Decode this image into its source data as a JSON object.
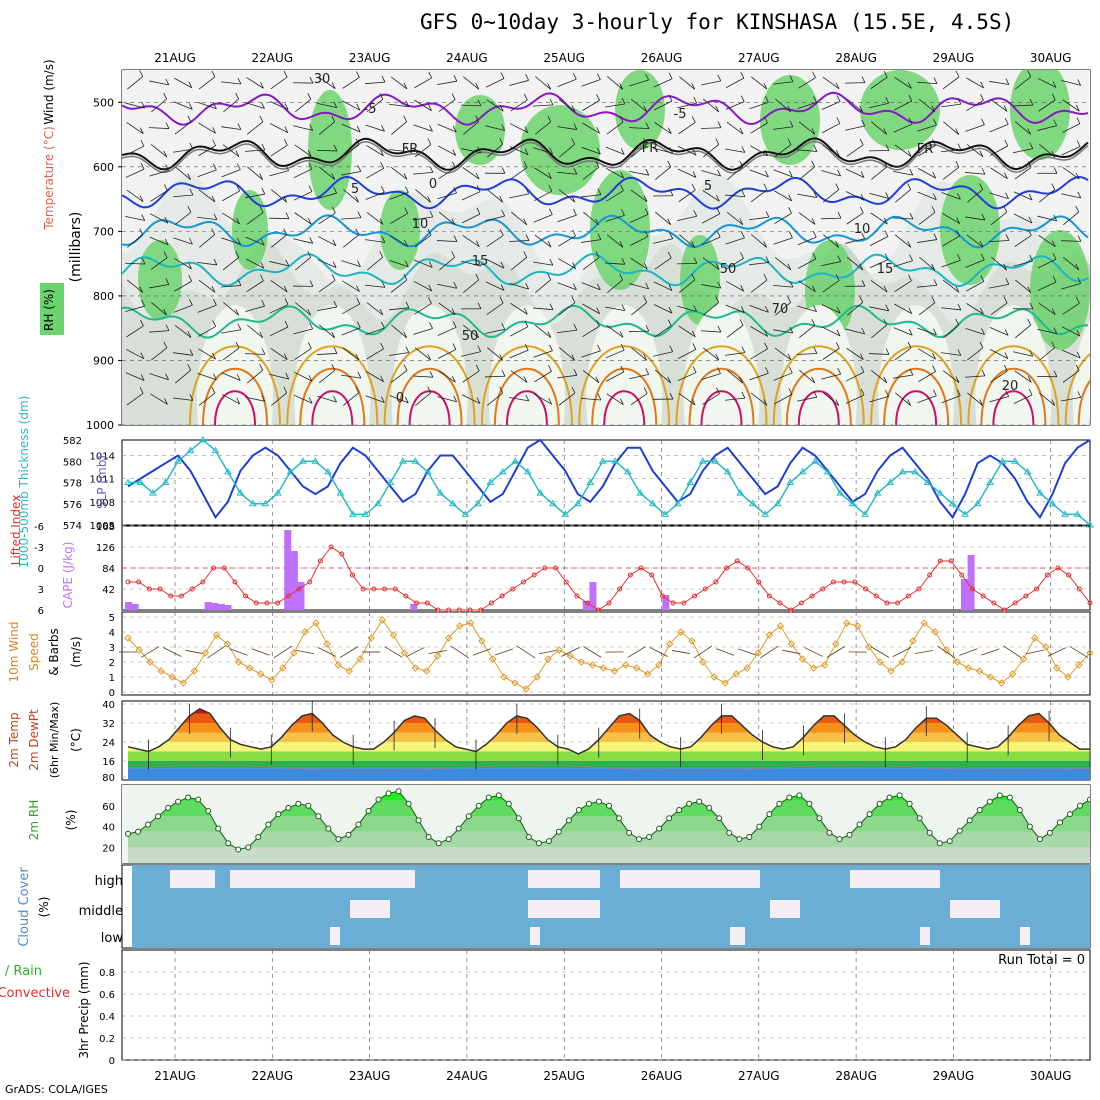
{
  "title": "GFS 0~10day 3-hourly for KINSHASA (15.5E, 4.5S)",
  "credit": "GrADS: COLA/IGES",
  "colors": {
    "rh_green": "#6cd46c",
    "temp_line": "#8e2be0",
    "slp": "#1f3fcf",
    "thickness": "#29b9c4",
    "cape": "#c070ff",
    "lifted": "#e03030",
    "wind": "#e09a2a",
    "rh2m": "#22dd22",
    "cloud": "#6aaed6"
  },
  "chart_data": [
    {
      "type": "heatmap",
      "id": "upper",
      "days": [
        "21AUG",
        "22AUG",
        "23AUG",
        "24AUG",
        "25AUG",
        "26AUG",
        "27AUG",
        "28AUG",
        "29AUG",
        "30AUG"
      ],
      "ylabel": "(millibars)",
      "left_labels": {
        "rh": "RH (%)",
        "temp": "Temperature (°C)",
        "wind": "Wind (m/s)"
      },
      "ylim": [
        1000,
        450
      ],
      "yticks": [
        500,
        600,
        700,
        800,
        900,
        1000
      ],
      "contour_labels": [
        "-5",
        "-5",
        "FR",
        "FR",
        "FR",
        "5",
        "0",
        "5",
        "10",
        "10",
        "15",
        "15",
        "20",
        "0",
        "30",
        "50",
        "50",
        "70"
      ],
      "isotherms": [
        {
          "name": "-5",
          "base_hpa": 510
        },
        {
          "name": "0",
          "base_hpa": 580
        },
        {
          "name": "5",
          "base_hpa": 640
        },
        {
          "name": "10",
          "base_hpa": 700
        },
        {
          "name": "15",
          "base_hpa": 760
        },
        {
          "name": "20",
          "base_hpa": 840
        }
      ]
    },
    {
      "type": "line",
      "id": "slp",
      "ylabel_left": "1000-500mb Thickness (dm)",
      "ylabel_right": "SLP (mb)",
      "ylim_left": [
        574,
        582
      ],
      "yticks_left": [
        574,
        576,
        578,
        580,
        582
      ],
      "ylim_right": [
        1005,
        1016
      ],
      "yticks_right": [
        1005,
        1008,
        1011,
        1014
      ],
      "series": [
        {
          "name": "SLP (mb)",
          "values": [
            1010,
            1011,
            1012,
            1013,
            1014,
            1012,
            1009,
            1006,
            1008,
            1012,
            1014,
            1015,
            1014,
            1012,
            1010,
            1009,
            1010,
            1013,
            1015,
            1014,
            1012,
            1010,
            1008,
            1009,
            1012,
            1014,
            1014,
            1012,
            1010,
            1008,
            1009,
            1012,
            1015,
            1016,
            1014,
            1012,
            1009,
            1008,
            1010,
            1013,
            1015,
            1015,
            1012,
            1010,
            1008,
            1009,
            1012,
            1014,
            1015,
            1013,
            1011,
            1009,
            1010,
            1013,
            1015,
            1014,
            1012,
            1010,
            1008,
            1009,
            1012,
            1014,
            1015,
            1013,
            1011,
            1008,
            1006,
            1009,
            1013,
            1014,
            1013,
            1011,
            1008,
            1006,
            1009,
            1013,
            1015,
            1016
          ]
        },
        {
          "name": "Thickness (dm)",
          "values": [
            578,
            578,
            577,
            578,
            580,
            581,
            582,
            581,
            579,
            577,
            576,
            576,
            577,
            579,
            580,
            580,
            579,
            577,
            575,
            575,
            576,
            578,
            580,
            580,
            579,
            577,
            576,
            575,
            576,
            578,
            579,
            580,
            579,
            577,
            576,
            575,
            576,
            578,
            580,
            580,
            579,
            577,
            576,
            575,
            576,
            578,
            580,
            580,
            579,
            577,
            576,
            575,
            576,
            578,
            579,
            580,
            579,
            577,
            576,
            575,
            577,
            578,
            579,
            579,
            578,
            577,
            576,
            575,
            576,
            578,
            580,
            580,
            579,
            577,
            576,
            575,
            575,
            574
          ]
        }
      ]
    },
    {
      "type": "bar",
      "id": "cape",
      "ylabel_left": "Lifted Index",
      "ylabel_right": "CAPE (J/kg)",
      "ylim_left": [
        6,
        -6
      ],
      "yticks_left": [
        -6,
        -3,
        0,
        3,
        6
      ],
      "ylim_right": [
        0,
        168
      ],
      "yticks_right": [
        42,
        84,
        126,
        168
      ],
      "cape_values": [
        16,
        12,
        0,
        0,
        0,
        0,
        0,
        0,
        0,
        0,
        0,
        0,
        16,
        14,
        12,
        10,
        0,
        0,
        0,
        0,
        0,
        0,
        0,
        0,
        160,
        118,
        56,
        0,
        0,
        0,
        0,
        0,
        0,
        0,
        0,
        0,
        0,
        0,
        0,
        0,
        0,
        0,
        0,
        12,
        0,
        0,
        0,
        0,
        0,
        0,
        0,
        0,
        0,
        0,
        0,
        0,
        0,
        0,
        0,
        0,
        0,
        0,
        0,
        0,
        0,
        0,
        0,
        0,
        0,
        18,
        56,
        0,
        0,
        0,
        0,
        0,
        0,
        0,
        0,
        0,
        0,
        30,
        0,
        0,
        0,
        0,
        0,
        0,
        0,
        0,
        0,
        0,
        0,
        0,
        0,
        0,
        0,
        0,
        0,
        0,
        0,
        0,
        0,
        0,
        0,
        0,
        0,
        0,
        0,
        0,
        0,
        0,
        0,
        0,
        0,
        0,
        0,
        0,
        0,
        0,
        0,
        0,
        0,
        0,
        0,
        0,
        62,
        110,
        0,
        0,
        0,
        0,
        0,
        0,
        0,
        0,
        0,
        0,
        0,
        0,
        0,
        0,
        0,
        0,
        0,
        0
      ],
      "lifted_index": [
        2,
        2,
        3,
        3,
        4,
        4,
        3,
        2,
        0,
        0,
        2,
        4,
        5,
        5,
        5,
        4,
        3,
        2,
        -1,
        -3,
        -2,
        1,
        3,
        3,
        3,
        3,
        4,
        5,
        5,
        6,
        6,
        6,
        6,
        6,
        5,
        4,
        3,
        2,
        1,
        0,
        0,
        2,
        4,
        5,
        6,
        5,
        3,
        1,
        0,
        1,
        4,
        5,
        5,
        4,
        3,
        2,
        0,
        -1,
        0,
        2,
        4,
        5,
        6,
        5,
        4,
        3,
        2,
        2,
        2,
        3,
        4,
        5,
        5,
        4,
        3,
        1,
        -1,
        -1,
        1,
        3,
        4,
        5,
        6,
        5,
        4,
        3,
        1,
        0,
        1,
        3,
        5
      ]
    },
    {
      "type": "line",
      "id": "wind",
      "ylabel": [
        "10m Wind",
        "Speed",
        "& Barbs",
        "(m/s)"
      ],
      "ylim": [
        0,
        5
      ],
      "yticks": [
        0,
        1,
        2,
        3,
        4,
        5
      ],
      "values": [
        3.6,
        2.8,
        2.0,
        1.4,
        1.0,
        0.6,
        1.4,
        2.6,
        3.8,
        3.2,
        2.0,
        1.6,
        1.2,
        0.8,
        1.6,
        2.6,
        4.0,
        4.6,
        3.2,
        1.8,
        1.4,
        2.2,
        3.6,
        4.8,
        3.8,
        2.6,
        1.6,
        1.4,
        2.4,
        3.6,
        4.4,
        4.6,
        3.4,
        2.2,
        1.0,
        0.6,
        0.2,
        1.0,
        2.2,
        2.8,
        2.4,
        2.0,
        1.8,
        1.6,
        1.4,
        1.8,
        1.6,
        1.2,
        1.8,
        3.2,
        4.0,
        3.4,
        2.0,
        1.0,
        0.6,
        1.2,
        1.6,
        2.6,
        3.8,
        4.4,
        3.2,
        2.2,
        1.6,
        1.8,
        3.2,
        4.6,
        4.4,
        3.0,
        2.0,
        1.4,
        2.0,
        3.4,
        4.6,
        4.0,
        2.8,
        2.0,
        1.6,
        1.4,
        1.0,
        0.6,
        1.2,
        2.2,
        3.6,
        3.0,
        1.6,
        1.0,
        1.8,
        2.6
      ]
    },
    {
      "type": "area",
      "id": "temp",
      "ylabel": [
        "2m Temp",
        "2m DewPt",
        "(6hr Min/Max)",
        "(°C)"
      ],
      "yticks": [
        80,
        16,
        24,
        32,
        40
      ],
      "ylim": [
        8,
        40
      ],
      "temp": [
        22,
        21,
        20,
        22,
        25,
        30,
        35,
        38,
        36,
        30,
        25,
        23,
        22,
        21,
        22,
        26,
        31,
        35,
        36,
        32,
        27,
        24,
        22,
        21,
        21,
        24,
        28,
        33,
        35,
        34,
        29,
        25,
        22,
        21,
        20,
        23,
        27,
        32,
        35,
        34,
        30,
        25,
        22,
        21,
        19,
        21,
        25,
        30,
        35,
        36,
        33,
        27,
        24,
        22,
        21,
        22,
        26,
        31,
        35,
        35,
        31,
        27,
        24,
        22,
        21,
        22,
        26,
        31,
        35,
        35,
        31,
        27,
        24,
        22,
        21,
        22,
        25,
        30,
        34,
        34,
        31,
        27,
        23,
        22,
        21,
        22,
        26,
        31,
        35,
        36,
        32,
        27,
        24,
        21,
        21
      ]
    },
    {
      "type": "area",
      "id": "rh2m",
      "ylabel": [
        "2m RH",
        "(%)"
      ],
      "ylim": [
        5,
        80
      ],
      "yticks": [
        20,
        40,
        60
      ],
      "values": [
        33,
        35,
        42,
        50,
        58,
        64,
        68,
        66,
        55,
        38,
        24,
        18,
        20,
        30,
        42,
        52,
        58,
        62,
        60,
        50,
        38,
        28,
        32,
        42,
        55,
        66,
        72,
        74,
        62,
        46,
        30,
        24,
        28,
        38,
        50,
        60,
        68,
        70,
        62,
        48,
        30,
        24,
        26,
        35,
        46,
        56,
        62,
        64,
        60,
        48,
        34,
        28,
        30,
        38,
        48,
        56,
        62,
        64,
        58,
        48,
        34,
        28,
        30,
        40,
        52,
        62,
        68,
        70,
        62,
        48,
        34,
        28,
        32,
        42,
        52,
        62,
        68,
        70,
        62,
        48,
        34,
        24,
        26,
        36,
        46,
        56,
        64,
        70,
        68,
        56,
        40,
        28,
        34,
        44,
        52,
        60,
        66
      ]
    },
    {
      "type": "heatmap",
      "id": "cloud",
      "ylabel": [
        "Cloud Cover",
        "(%)"
      ],
      "rows": [
        "high",
        "middle",
        "low"
      ]
    },
    {
      "type": "bar",
      "id": "precip",
      "ylabel": [
        "Total / Rain",
        "Convective",
        "3hr Precip (mm)"
      ],
      "ylim": [
        0,
        1
      ],
      "yticks": [
        0,
        0.2,
        0.4,
        0.6,
        0.8
      ],
      "run_total": "Run Total = 0",
      "values": []
    }
  ]
}
